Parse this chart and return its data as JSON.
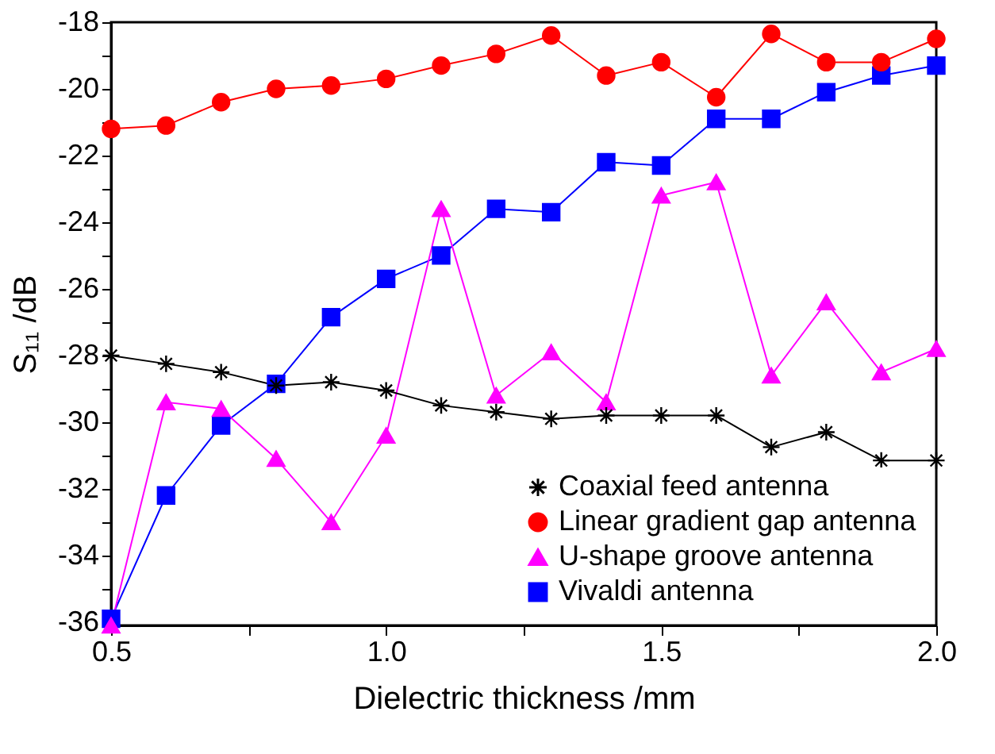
{
  "chart_data": {
    "type": "line",
    "xlabel": "Dielectric thickness /mm",
    "ylabel": "S₁₁ /dB",
    "x": [
      0.5,
      0.6,
      0.7,
      0.8,
      0.9,
      1.0,
      1.1,
      1.2,
      1.3,
      1.4,
      1.5,
      1.6,
      1.7,
      1.8,
      1.9,
      2.0
    ],
    "series": [
      {
        "name": "Coaxial feed antenna",
        "color": "#000000",
        "marker": "cross",
        "values": [
          -28.0,
          -28.25,
          -28.5,
          -28.9,
          -28.8,
          -29.05,
          -29.5,
          -29.7,
          -29.9,
          -29.8,
          -29.8,
          -29.8,
          -30.75,
          -30.3,
          -31.15,
          -31.15
        ]
      },
      {
        "name": "Linear gradient gap antenna",
        "color": "#ff0000",
        "marker": "circle",
        "values": [
          -21.2,
          -21.1,
          -20.4,
          -20.0,
          -19.9,
          -19.7,
          -19.3,
          -18.95,
          -18.4,
          -19.6,
          -19.2,
          -20.25,
          -18.35,
          -19.2,
          -19.2,
          -18.5
        ]
      },
      {
        "name": "U-shape groove antenna",
        "color": "#ff00ff",
        "marker": "triangle",
        "values": [
          -36.1,
          -29.4,
          -29.6,
          -31.1,
          -33.0,
          -30.4,
          -23.6,
          -29.2,
          -27.9,
          -29.4,
          -23.2,
          -22.8,
          -28.6,
          -26.4,
          -28.5,
          -27.8
        ]
      },
      {
        "name": "Vivaldi antenna",
        "color": "#0000ff",
        "marker": "square",
        "values": [
          -35.9,
          -32.2,
          -30.1,
          -28.85,
          -26.85,
          -25.7,
          -25.0,
          -23.6,
          -23.7,
          -22.2,
          -22.3,
          -20.9,
          -20.9,
          -20.1,
          -19.6,
          -19.3
        ]
      }
    ],
    "xlim": [
      0.5,
      2.0
    ],
    "xticks": [
      {
        "value": 0.5,
        "label": "0.5"
      },
      {
        "value": 0.75,
        "label": null
      },
      {
        "value": 1.0,
        "label": "1.0"
      },
      {
        "value": 1.25,
        "label": null
      },
      {
        "value": 1.5,
        "label": "1.5"
      },
      {
        "value": 1.75,
        "label": null
      },
      {
        "value": 2.0,
        "label": "2.0"
      }
    ],
    "ylim": [
      -36.1,
      -18
    ],
    "yticks": [
      -36,
      {
        "value": -35,
        "label": null
      },
      -34,
      {
        "value": -33,
        "label": null
      },
      -32,
      {
        "value": -31,
        "label": null
      },
      -30,
      {
        "value": -29,
        "label": null
      },
      -28,
      {
        "value": -27,
        "label": null
      },
      -26,
      {
        "value": -25,
        "label": null
      },
      -24,
      {
        "value": -23,
        "label": null
      },
      -22,
      {
        "value": -21,
        "label": null
      },
      -20,
      {
        "value": -19,
        "label": null
      },
      -18
    ],
    "grid": false,
    "legend": "bottom right",
    "line_style": "solid"
  }
}
